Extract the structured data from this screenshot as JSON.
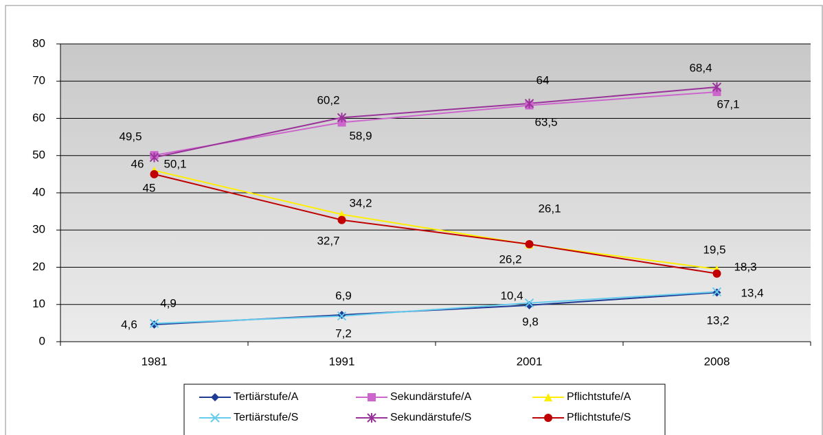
{
  "chart_data": {
    "type": "line",
    "categories": [
      "1981",
      "1991",
      "2001",
      "2008"
    ],
    "ylim": [
      0,
      80
    ],
    "yticks": [
      0,
      10,
      20,
      30,
      40,
      50,
      60,
      70,
      80
    ],
    "grid": true,
    "legend": "bottom",
    "series": [
      {
        "name": "Tertiärstufe/A",
        "color": "#1f3a93",
        "marker": "diamond",
        "values": [
          4.6,
          7.2,
          9.8,
          13.2
        ],
        "value_labels": [
          "4,6",
          "7,2",
          "9,8",
          "13,2"
        ]
      },
      {
        "name": "Sekundärstufe/A",
        "color": "#cc66cc",
        "marker": "square",
        "values": [
          50.1,
          58.9,
          63.5,
          67.1
        ],
        "value_labels": [
          "50,1",
          "58,9",
          "63,5",
          "67,1"
        ]
      },
      {
        "name": "Pflichtstufe/A",
        "color": "#ffee00",
        "marker": "triangle",
        "values": [
          46,
          34.2,
          26.1,
          19.5
        ],
        "value_labels": [
          "46",
          "34,2",
          "26,1",
          "19,5"
        ]
      },
      {
        "name": "Tertiärstufe/S",
        "color": "#66ccee",
        "marker": "x",
        "values": [
          4.9,
          6.9,
          10.4,
          13.4
        ],
        "value_labels": [
          "4,9",
          "6,9",
          "10,4",
          "13,4"
        ]
      },
      {
        "name": "Sekundärstufe/S",
        "color": "#993399",
        "marker": "star",
        "values": [
          49.5,
          60.2,
          64,
          68.4
        ],
        "value_labels": [
          "49,5",
          "60,2",
          "64",
          "68,4"
        ]
      },
      {
        "name": "Pflichtstufe/S",
        "color": "#c00000",
        "marker": "circle",
        "values": [
          45,
          32.7,
          26.2,
          18.3
        ],
        "value_labels": [
          "45",
          "32,7",
          "26,2",
          "18,3"
        ]
      }
    ]
  }
}
